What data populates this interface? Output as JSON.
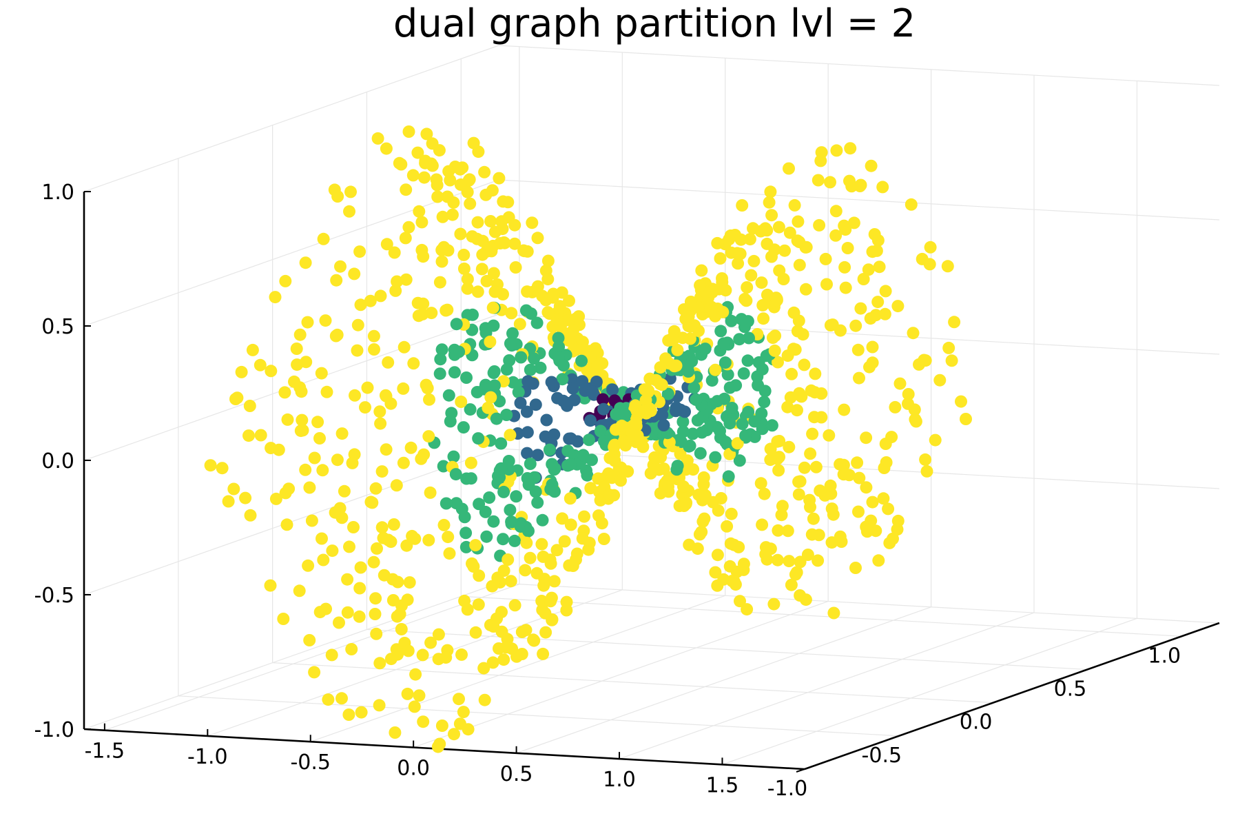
{
  "chart_data": {
    "type": "scatter",
    "title": "dual graph partition lvl = 2",
    "xlabel": "",
    "ylabel": "",
    "zlabel": "",
    "projection": "3d",
    "grid": true,
    "legend": "none",
    "x_ticks": [
      "-1.5",
      "-1.0",
      "-0.5",
      "0.0",
      "0.5",
      "1.0",
      "1.5"
    ],
    "y_ticks": [
      "-1.0",
      "-0.5",
      "0.0",
      "0.5",
      "1.0"
    ],
    "z_ticks": [
      "-1.0",
      "-0.5",
      "0.0",
      "0.5",
      "1.0"
    ],
    "xlim": [
      -1.6,
      1.9
    ],
    "ylim": [
      -1.0,
      1.2
    ],
    "zlim": [
      -1.0,
      1.0
    ],
    "surface": "saddle z = x^2 - y^2 (approx.)",
    "colors": {
      "yellow": "#fde725",
      "green": "#35b779",
      "blue": "#31688e",
      "purple": "#440154"
    },
    "series": [
      {
        "color": "#fde725",
        "count": 900
      },
      {
        "color": "#35b779",
        "count": 300
      },
      {
        "color": "#31688e",
        "count": 80
      },
      {
        "color": "#440154",
        "count": 12
      }
    ]
  }
}
